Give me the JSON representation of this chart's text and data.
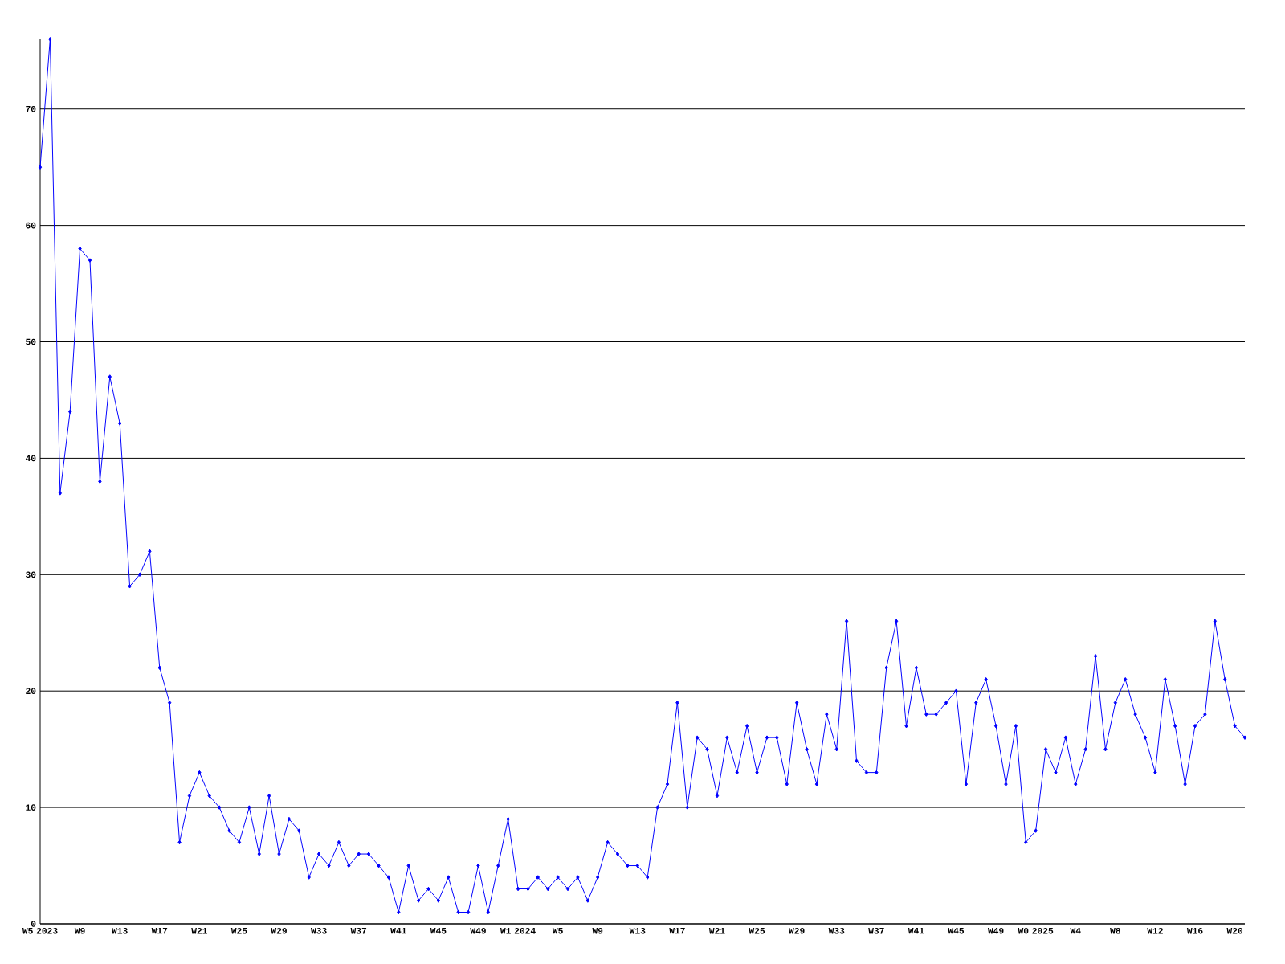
{
  "chart_data": {
    "type": "line",
    "categories": [
      "W5 2023",
      null,
      null,
      null,
      "W9",
      null,
      null,
      null,
      "W13",
      null,
      null,
      null,
      "W17",
      null,
      null,
      null,
      "W21",
      null,
      null,
      null,
      "W25",
      null,
      null,
      null,
      "W29",
      null,
      null,
      null,
      "W33",
      null,
      null,
      null,
      "W37",
      null,
      null,
      null,
      "W41",
      null,
      null,
      null,
      "W45",
      null,
      null,
      null,
      "W49",
      null,
      null,
      null,
      "W1 2024",
      null,
      null,
      null,
      "W5",
      null,
      null,
      null,
      "W9",
      null,
      null,
      null,
      "W13",
      null,
      null,
      null,
      "W17",
      null,
      null,
      null,
      "W21",
      null,
      null,
      null,
      "W25",
      null,
      null,
      null,
      "W29",
      null,
      null,
      null,
      "W33",
      null,
      null,
      null,
      "W37",
      null,
      null,
      null,
      "W41",
      null,
      null,
      null,
      "W45",
      null,
      null,
      null,
      "W49",
      null,
      null,
      null,
      "W0 2025",
      null,
      null,
      null,
      "W4",
      null,
      null,
      null,
      "W8",
      null,
      null,
      null,
      "W12",
      null,
      null,
      null,
      "W16",
      null,
      null,
      null,
      "W20",
      null
    ],
    "values": [
      65,
      76,
      37,
      44,
      58,
      57,
      38,
      47,
      43,
      29,
      30,
      32,
      22,
      19,
      7,
      11,
      13,
      11,
      10,
      8,
      7,
      10,
      6,
      11,
      6,
      9,
      8,
      4,
      6,
      5,
      7,
      5,
      6,
      6,
      5,
      4,
      1,
      5,
      2,
      3,
      2,
      4,
      1,
      1,
      5,
      1,
      5,
      9,
      3,
      3,
      4,
      3,
      4,
      3,
      4,
      2,
      4,
      7,
      6,
      5,
      5,
      4,
      10,
      12,
      19,
      10,
      16,
      15,
      11,
      16,
      13,
      17,
      13,
      16,
      16,
      12,
      19,
      15,
      12,
      18,
      15,
      26,
      14,
      13,
      13,
      22,
      26,
      17,
      22,
      18,
      18,
      19,
      20,
      12,
      19,
      21,
      17,
      12,
      17,
      7,
      8,
      15,
      13,
      16,
      12,
      15,
      23,
      15,
      19,
      21,
      18,
      16,
      13,
      21,
      17,
      12,
      17,
      18,
      26,
      21,
      17,
      16
    ],
    "color": "#0000ff",
    "ylim": [
      0,
      76
    ],
    "yticks": [
      0,
      10,
      20,
      30,
      40,
      50,
      60,
      70
    ],
    "grid": "y",
    "marker": "diamond"
  }
}
